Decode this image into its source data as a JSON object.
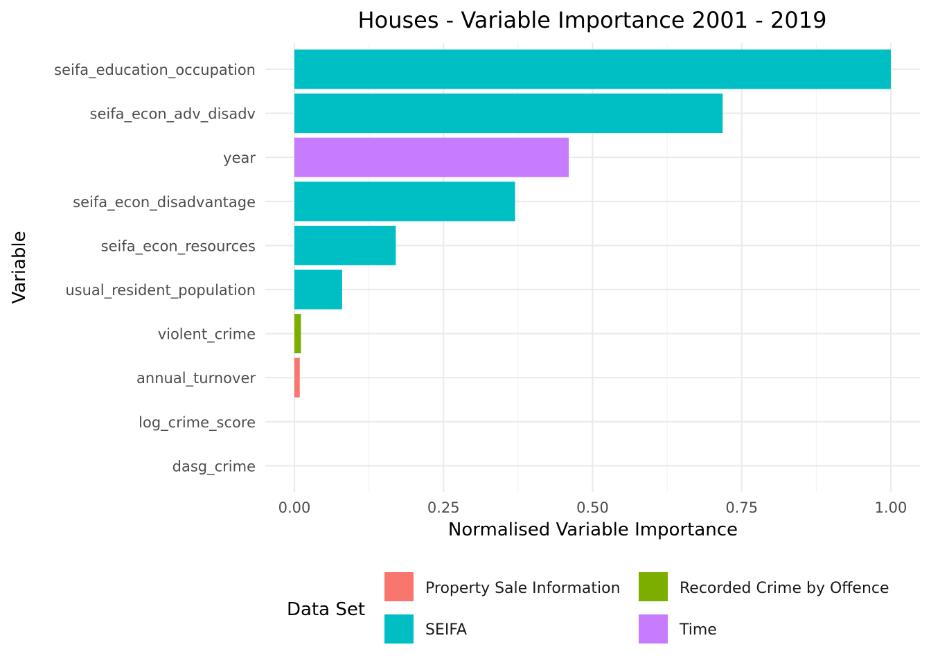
{
  "chart_data": {
    "type": "bar",
    "orientation": "horizontal",
    "title": "Houses - Variable Importance 2001 - 2019",
    "xlabel": "Normalised Variable Importance",
    "ylabel": "Variable",
    "xlim": [
      0,
      1
    ],
    "x_ticks": [
      "0.00",
      "0.25",
      "0.50",
      "0.75",
      "1.00"
    ],
    "x_tick_values": [
      0,
      0.25,
      0.5,
      0.75,
      1.0
    ],
    "grid": true,
    "legend": {
      "title": "Data Set",
      "placement": "bottom",
      "items": [
        {
          "label": "Property Sale Information",
          "color": "#F8766D"
        },
        {
          "label": "Recorded Crime by Offence",
          "color": "#7CAE00"
        },
        {
          "label": "SEIFA",
          "color": "#00BFC4"
        },
        {
          "label": "Time",
          "color": "#C77CFF"
        }
      ]
    },
    "bars": [
      {
        "category": "seifa_education_occupation",
        "value": 1.0,
        "group": "SEIFA",
        "color": "#00BFC4"
      },
      {
        "category": "seifa_econ_adv_disadv",
        "value": 0.718,
        "group": "SEIFA",
        "color": "#00BFC4"
      },
      {
        "category": "year",
        "value": 0.46,
        "group": "Time",
        "color": "#C77CFF"
      },
      {
        "category": "seifa_econ_disadvantage",
        "value": 0.37,
        "group": "SEIFA",
        "color": "#00BFC4"
      },
      {
        "category": "seifa_econ_resources",
        "value": 0.17,
        "group": "SEIFA",
        "color": "#00BFC4"
      },
      {
        "category": "usual_resident_population",
        "value": 0.08,
        "group": "SEIFA",
        "color": "#00BFC4"
      },
      {
        "category": "violent_crime",
        "value": 0.011,
        "group": "Recorded Crime by Offence",
        "color": "#7CAE00"
      },
      {
        "category": "annual_turnover",
        "value": 0.009,
        "group": "Property Sale Information",
        "color": "#F8766D"
      },
      {
        "category": "log_crime_score",
        "value": 0.0,
        "group": "",
        "color": "#00BFC4"
      },
      {
        "category": "dasg_crime",
        "value": 0.0,
        "group": "",
        "color": "#00BFC4"
      }
    ]
  }
}
